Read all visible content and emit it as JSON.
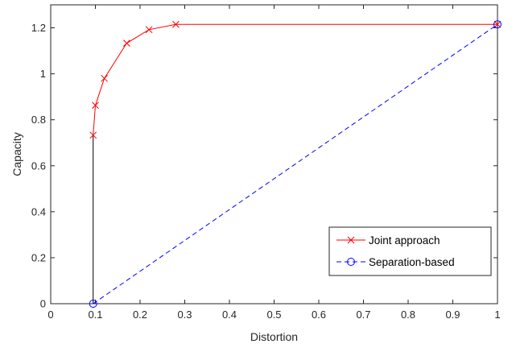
{
  "chart_data": {
    "type": "line",
    "title": "",
    "xlabel": "Distortion",
    "ylabel": "Capacity",
    "xlim": [
      0,
      1
    ],
    "ylim": [
      0,
      1.3
    ],
    "x_ticks": [
      0,
      0.1,
      0.2,
      0.3,
      0.4,
      0.5,
      0.6,
      0.7,
      0.8,
      0.9,
      1
    ],
    "x_tick_labels": [
      "0",
      "0.1",
      "0.2",
      "0.3",
      "0.4",
      "0.5",
      "0.6",
      "0.7",
      "0.8",
      "0.9",
      "1"
    ],
    "y_ticks": [
      0,
      0.2,
      0.4,
      0.6,
      0.8,
      1,
      1.2
    ],
    "y_tick_labels": [
      "0",
      "0.2",
      "0.4",
      "0.6",
      "0.8",
      "1",
      "1.2"
    ],
    "grid": false,
    "legend_position": "bottom-right",
    "series": [
      {
        "name": "Joint approach",
        "color": "#ff0000",
        "line_style": "solid",
        "marker": "x",
        "x": [
          0.095,
          0.1,
          0.12,
          0.17,
          0.22,
          0.28,
          1.0
        ],
        "y": [
          0.733,
          0.863,
          0.98,
          1.133,
          1.192,
          1.215,
          1.215
        ]
      },
      {
        "name": "Separation-based",
        "color": "#0000ff",
        "line_style": "dashed",
        "marker": "o",
        "x": [
          0.095,
          1.0
        ],
        "y": [
          0.0,
          1.215
        ]
      }
    ],
    "connector": {
      "color": "#000000",
      "x": [
        0.095,
        0.095
      ],
      "y": [
        0.0,
        0.733
      ]
    }
  }
}
